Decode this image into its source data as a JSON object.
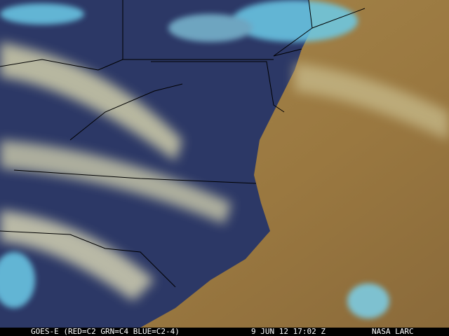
{
  "image": {
    "kind": "GOES-E satellite RGB composite over the US Mid-Atlantic coast",
    "colors": {
      "ocean": "#9a7a42",
      "land_dark": "#2a3560",
      "cloud": "#e8e4b8",
      "ice_cloud": "#6ccbe8",
      "border": "#000000"
    }
  },
  "caption": {
    "satellite": "GOES-E (RED=C2 GRN=C4 BLUE=C2-4)",
    "timestamp": "9 JUN 12 17:02 Z",
    "source": "NASA LARC"
  }
}
